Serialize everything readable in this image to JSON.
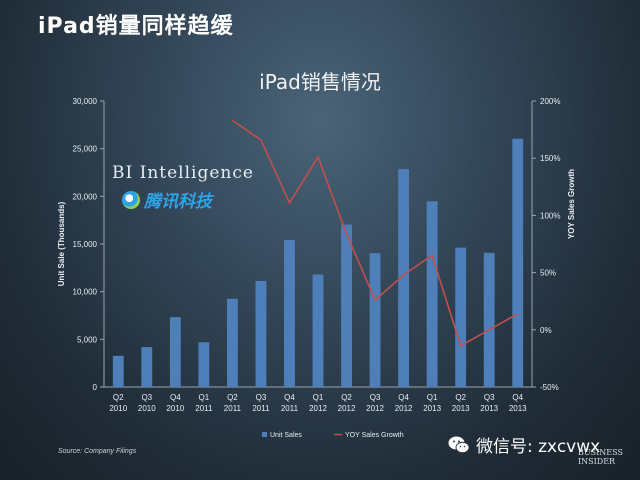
{
  "slide": {
    "title": "iPad销量同样趋缓",
    "source": "Source: Company Filings",
    "wechat": "微信号: zxcvwx",
    "bi_logo_line1": "BUSINESS",
    "bi_logo_line2": "INSIDER",
    "watermark_line1": "BI Intelligence",
    "watermark_line2": "腾讯科技"
  },
  "chart_data": {
    "type": "bar",
    "title": "iPad销售情况",
    "categories": [
      "Q2\n2010",
      "Q3\n2010",
      "Q4\n2010",
      "Q1\n2011",
      "Q2\n2011",
      "Q3\n2011",
      "Q4\n2011",
      "Q1\n2012",
      "Q2\n2012",
      "Q3\n2012",
      "Q4\n2012",
      "Q1\n2013",
      "Q2\n2013",
      "Q3\n2013",
      "Q4\n2013"
    ],
    "ylabel": "Unit Sale (Thousands)",
    "y2label": "YOY Sales Growth",
    "ylim": [
      0,
      30000
    ],
    "y2lim": [
      -50,
      200
    ],
    "yticks": [
      "0",
      "5,000",
      "10,000",
      "15,000",
      "20,000",
      "25,000",
      "30,000"
    ],
    "y2ticks": [
      "-50%",
      "0%",
      "50%",
      "100%",
      "150%",
      "200%"
    ],
    "series": [
      {
        "name": "Unit Sales",
        "type": "bar",
        "color": "#4f7fb8",
        "values": [
          3270,
          4190,
          7330,
          4690,
          9250,
          11120,
          15430,
          11800,
          17040,
          14040,
          22860,
          19480,
          14620,
          14080,
          26040
        ]
      },
      {
        "name": "YOY Sales Growth",
        "type": "line",
        "axis": "right",
        "color": "#c0504d",
        "values": [
          null,
          null,
          null,
          null,
          183,
          166,
          111,
          151,
          84,
          26,
          48,
          65,
          -14,
          0,
          14
        ]
      }
    ],
    "legend": "bottom"
  }
}
